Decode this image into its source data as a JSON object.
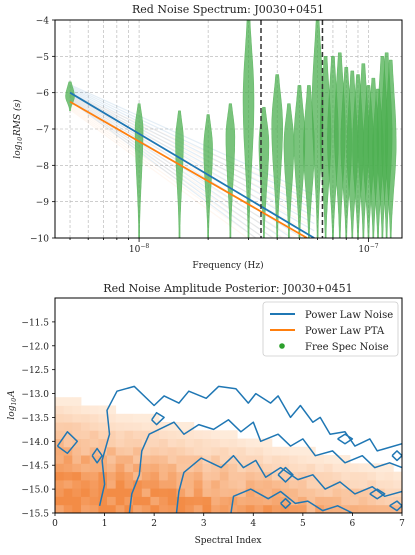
{
  "chart_data": [
    {
      "type": "line",
      "title": "Red Noise Spectrum: J0030+0451",
      "xlabel": "Frequency (Hz)",
      "ylabel": "log10 RMS (s)",
      "ylabel_parts": {
        "base": "log",
        "sub": "10",
        "rest": "RMS (s)"
      },
      "xscale": "log",
      "xlim": [
        4.3e-09,
        1.4e-07
      ],
      "ylim": [
        -10,
        -4
      ],
      "xticks_major": [
        {
          "value": 1e-08,
          "label": "10",
          "exp": "−8"
        },
        {
          "value": 1e-07,
          "label": "10",
          "exp": "−7"
        }
      ],
      "yticks": [
        {
          "value": -4,
          "label": "−4"
        },
        {
          "value": -5,
          "label": "−5"
        },
        {
          "value": -6,
          "label": "−6"
        },
        {
          "value": -7,
          "label": "−7"
        },
        {
          "value": -8,
          "label": "−8"
        },
        {
          "value": -9,
          "label": "−9"
        },
        {
          "value": -10,
          "label": "−10"
        }
      ],
      "grid": true,
      "vertical_lines": [
        3.4e-08,
        6.3e-08
      ],
      "series": [
        {
          "kind": "power_law",
          "color": "#1f77b4",
          "x": [
            5e-09,
            5.8e-08
          ],
          "y": [
            -6.0,
            -10.0
          ]
        },
        {
          "kind": "power_law",
          "color": "#ff7f0e",
          "x": [
            5e-09,
            5.4e-08
          ],
          "y": [
            -6.25,
            -10.0
          ]
        }
      ],
      "violins": {
        "color": "#4caf50",
        "items": [
          {
            "f": 5e-09,
            "y_low": -6.5,
            "y_high": -5.7,
            "y_mode": -6.1,
            "w": 0.45
          },
          {
            "f": 1e-08,
            "y_low": -10,
            "y_high": -6.3,
            "y_mode": -7.0,
            "w": 0.4
          },
          {
            "f": 1.5e-08,
            "y_low": -10,
            "y_high": -6.5,
            "y_mode": -7.3,
            "w": 0.4
          },
          {
            "f": 2e-08,
            "y_low": -10,
            "y_high": -6.6,
            "y_mode": -7.5,
            "w": 0.45
          },
          {
            "f": 2.5e-08,
            "y_low": -10,
            "y_high": -6.3,
            "y_mode": -7.2,
            "w": 0.45
          },
          {
            "f": 3e-08,
            "y_low": -10,
            "y_high": -4.0,
            "y_mode": -6.2,
            "w": 0.55
          },
          {
            "f": 3.5e-08,
            "y_low": -10,
            "y_high": -6.4,
            "y_mode": -7.4,
            "w": 0.5
          },
          {
            "f": 4e-08,
            "y_low": -10,
            "y_high": -5.5,
            "y_mode": -6.9,
            "w": 0.55
          },
          {
            "f": 4.5e-08,
            "y_low": -10,
            "y_high": -6.3,
            "y_mode": -7.4,
            "w": 0.5
          },
          {
            "f": 5e-08,
            "y_low": -10,
            "y_high": -5.8,
            "y_mode": -7.3,
            "w": 0.55
          },
          {
            "f": 5.5e-08,
            "y_low": -10,
            "y_high": -5.8,
            "y_mode": -7.5,
            "w": 0.55
          },
          {
            "f": 6e-08,
            "y_low": -10,
            "y_high": -4.0,
            "y_mode": -6.3,
            "w": 0.55
          },
          {
            "f": 6.5e-08,
            "y_low": -10,
            "y_high": -5.0,
            "y_mode": -7.2,
            "w": 0.55
          },
          {
            "f": 7e-08,
            "y_low": -10,
            "y_high": -5.0,
            "y_mode": -7.3,
            "w": 0.55
          },
          {
            "f": 7.5e-08,
            "y_low": -10,
            "y_high": -4.9,
            "y_mode": -7.1,
            "w": 0.55
          },
          {
            "f": 8e-08,
            "y_low": -10,
            "y_high": -5.3,
            "y_mode": -7.4,
            "w": 0.55
          },
          {
            "f": 8.5e-08,
            "y_low": -10,
            "y_high": -5.4,
            "y_mode": -7.6,
            "w": 0.55
          },
          {
            "f": 9e-08,
            "y_low": -10,
            "y_high": -5.5,
            "y_mode": -7.5,
            "w": 0.55
          },
          {
            "f": 9.5e-08,
            "y_low": -10,
            "y_high": -5.2,
            "y_mode": -7.3,
            "w": 0.55
          },
          {
            "f": 1e-07,
            "y_low": -10,
            "y_high": -5.8,
            "y_mode": -7.6,
            "w": 0.55
          },
          {
            "f": 1.05e-07,
            "y_low": -10,
            "y_high": -5.6,
            "y_mode": -7.4,
            "w": 0.55
          },
          {
            "f": 1.1e-07,
            "y_low": -10,
            "y_high": -5.9,
            "y_mode": -7.6,
            "w": 0.55
          },
          {
            "f": 1.15e-07,
            "y_low": -10,
            "y_high": -5.0,
            "y_mode": -7.3,
            "w": 0.55
          },
          {
            "f": 1.2e-07,
            "y_low": -10,
            "y_high": -4.9,
            "y_mode": -7.2,
            "w": 0.55
          },
          {
            "f": 1.25e-07,
            "y_low": -10,
            "y_high": -5.1,
            "y_mode": -7.4,
            "w": 0.55
          }
        ]
      }
    },
    {
      "type": "heatmap",
      "title": "Red Noise Amplitude Posterior: J0030+0451",
      "xlabel": "Spectral Index",
      "ylabel": "log10 A",
      "ylabel_parts": {
        "base": "log",
        "sub": "10",
        "rest": "A"
      },
      "xlim": [
        0,
        7
      ],
      "ylim": [
        -15.5,
        -11.0
      ],
      "xticks": [
        0,
        1,
        2,
        3,
        4,
        5,
        6,
        7
      ],
      "yticks": [
        {
          "value": -11.5,
          "label": "−11.5"
        },
        {
          "value": -12.0,
          "label": "−12.0"
        },
        {
          "value": -12.5,
          "label": "−12.5"
        },
        {
          "value": -13.0,
          "label": "−13.0"
        },
        {
          "value": -13.5,
          "label": "−13.5"
        },
        {
          "value": -14.0,
          "label": "−14.0"
        },
        {
          "value": -14.5,
          "label": "−14.5"
        },
        {
          "value": -15.0,
          "label": "−15.0"
        },
        {
          "value": -15.5,
          "label": "−15.5"
        }
      ],
      "colormap": "Oranges",
      "legend": {
        "placement": "top-right",
        "entries": [
          {
            "label": "Power Law Noise",
            "color": "#1f77b4",
            "marker": "line"
          },
          {
            "label": "Power Law PTA",
            "color": "#ff7f0e",
            "marker": "line"
          },
          {
            "label": "Free Spec Noise",
            "color": "#2ca02c",
            "marker": "dot"
          }
        ]
      },
      "contours": {
        "color": "#1f77b4",
        "polylines": [
          [
            [
              0.9,
              -15.35
            ],
            [
              1.0,
              -14.9
            ],
            [
              0.95,
              -14.4
            ],
            [
              1.1,
              -13.85
            ],
            [
              1.05,
              -13.35
            ],
            [
              1.25,
              -12.95
            ],
            [
              1.6,
              -12.85
            ],
            [
              2.0,
              -13.25
            ],
            [
              2.2,
              -13.05
            ],
            [
              2.5,
              -13.2
            ],
            [
              2.7,
              -12.95
            ],
            [
              3.05,
              -13.1
            ],
            [
              3.3,
              -12.85
            ],
            [
              3.65,
              -12.9
            ],
            [
              3.9,
              -13.2
            ],
            [
              4.05,
              -13.0
            ],
            [
              4.35,
              -13.2
            ],
            [
              4.5,
              -13.05
            ],
            [
              4.75,
              -13.5
            ],
            [
              4.95,
              -13.25
            ],
            [
              5.2,
              -13.6
            ],
            [
              5.35,
              -13.5
            ],
            [
              5.55,
              -13.85
            ],
            [
              5.85,
              -13.8
            ],
            [
              6.05,
              -14.1
            ],
            [
              6.35,
              -13.95
            ],
            [
              6.5,
              -14.2
            ],
            [
              7.0,
              -14.05
            ]
          ],
          [
            [
              1.5,
              -15.5
            ],
            [
              1.55,
              -15.1
            ],
            [
              1.7,
              -14.7
            ],
            [
              1.75,
              -14.2
            ],
            [
              1.9,
              -13.85
            ],
            [
              2.4,
              -13.6
            ],
            [
              2.6,
              -13.85
            ],
            [
              2.9,
              -13.65
            ],
            [
              3.2,
              -13.75
            ],
            [
              3.5,
              -13.55
            ],
            [
              3.75,
              -13.8
            ],
            [
              4.0,
              -13.6
            ],
            [
              4.15,
              -14.0
            ],
            [
              4.5,
              -13.85
            ],
            [
              4.75,
              -14.1
            ],
            [
              5.0,
              -13.95
            ],
            [
              5.25,
              -14.3
            ],
            [
              5.6,
              -14.2
            ],
            [
              5.85,
              -14.45
            ],
            [
              6.2,
              -14.3
            ],
            [
              6.45,
              -14.55
            ],
            [
              6.75,
              -14.45
            ],
            [
              7.0,
              -14.55
            ]
          ],
          [
            [
              2.45,
              -15.5
            ],
            [
              2.5,
              -15.05
            ],
            [
              2.6,
              -14.65
            ],
            [
              2.95,
              -14.35
            ],
            [
              3.35,
              -14.55
            ],
            [
              3.6,
              -14.3
            ],
            [
              3.8,
              -14.55
            ],
            [
              4.05,
              -14.4
            ],
            [
              4.25,
              -14.75
            ],
            [
              4.55,
              -14.55
            ],
            [
              4.9,
              -14.8
            ],
            [
              5.2,
              -14.7
            ],
            [
              5.45,
              -15.0
            ],
            [
              5.75,
              -14.85
            ],
            [
              6.05,
              -15.1
            ],
            [
              6.4,
              -14.95
            ],
            [
              6.65,
              -15.15
            ],
            [
              7.0,
              -15.05
            ]
          ],
          [
            [
              3.55,
              -15.5
            ],
            [
              3.6,
              -15.15
            ],
            [
              3.95,
              -15.0
            ],
            [
              4.3,
              -15.2
            ],
            [
              4.55,
              -15.05
            ],
            [
              4.85,
              -15.3
            ],
            [
              5.1,
              -15.25
            ],
            [
              5.4,
              -15.45
            ],
            [
              5.7,
              -15.35
            ],
            [
              6.0,
              -15.5
            ]
          ],
          [
            [
              0.05,
              -14.1
            ],
            [
              0.25,
              -13.8
            ],
            [
              0.45,
              -14.0
            ],
            [
              0.25,
              -14.25
            ],
            [
              0.05,
              -14.1
            ]
          ],
          [
            [
              0.75,
              -14.3
            ],
            [
              0.85,
              -14.15
            ],
            [
              0.95,
              -14.3
            ],
            [
              0.85,
              -14.45
            ],
            [
              0.75,
              -14.3
            ]
          ],
          [
            [
              1.95,
              -13.55
            ],
            [
              2.05,
              -13.4
            ],
            [
              2.2,
              -13.5
            ],
            [
              2.05,
              -13.65
            ],
            [
              1.95,
              -13.55
            ]
          ],
          [
            [
              4.5,
              -14.7
            ],
            [
              4.65,
              -14.55
            ],
            [
              4.8,
              -14.7
            ],
            [
              4.65,
              -14.85
            ],
            [
              4.5,
              -14.7
            ]
          ],
          [
            [
              4.55,
              -15.3
            ],
            [
              4.65,
              -15.2
            ],
            [
              4.75,
              -15.3
            ],
            [
              4.65,
              -15.4
            ],
            [
              4.55,
              -15.3
            ]
          ],
          [
            [
              6.35,
              -15.1
            ],
            [
              6.5,
              -15.0
            ],
            [
              6.65,
              -15.1
            ],
            [
              6.5,
              -15.2
            ],
            [
              6.35,
              -15.1
            ]
          ],
          [
            [
              5.7,
              -13.95
            ],
            [
              5.85,
              -13.85
            ],
            [
              6.0,
              -13.95
            ],
            [
              5.85,
              -14.05
            ],
            [
              5.7,
              -13.95
            ]
          ],
          [
            [
              6.8,
              -14.3
            ],
            [
              6.9,
              -14.2
            ],
            [
              7.0,
              -14.3
            ],
            [
              6.9,
              -14.4
            ],
            [
              6.8,
              -14.3
            ]
          ],
          [
            [
              6.75,
              -15.35
            ],
            [
              6.9,
              -15.25
            ],
            [
              7.0,
              -15.35
            ],
            [
              6.9,
              -15.45
            ],
            [
              6.75,
              -15.35
            ]
          ]
        ]
      }
    }
  ]
}
